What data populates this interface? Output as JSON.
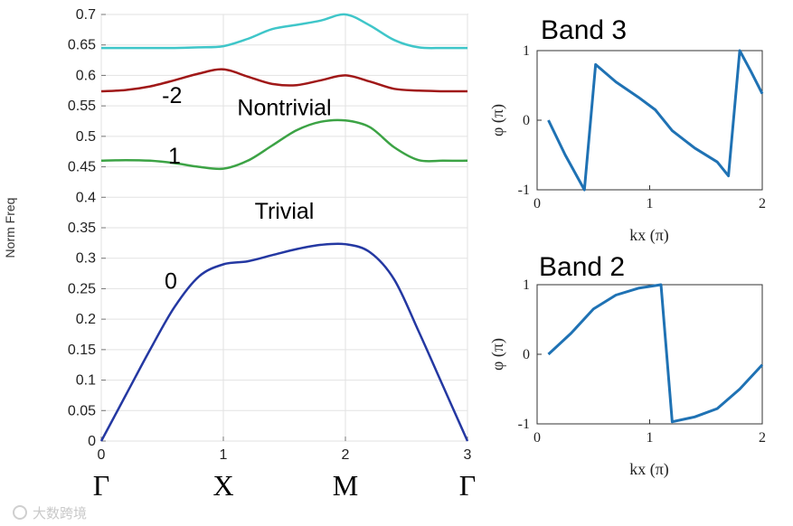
{
  "chart_data": [
    {
      "type": "line",
      "title": "",
      "xlabel": "",
      "ylabel": "Norm Freq",
      "xlim": [
        0,
        3
      ],
      "ylim": [
        0,
        0.7
      ],
      "x_ticks": [
        "0",
        "1",
        "2",
        "3"
      ],
      "y_ticks": [
        "0",
        "0.05",
        "0.1",
        "0.15",
        "0.2",
        "0.25",
        "0.3",
        "0.35",
        "0.4",
        "0.45",
        "0.5",
        "0.55",
        "0.6",
        "0.65",
        "0.7"
      ],
      "symmetry_points": [
        "Γ",
        "X",
        "M",
        "Γ"
      ],
      "annotations": [
        {
          "text": "-2",
          "x": 0.58,
          "y": 0.555
        },
        {
          "text": "Nontrivial",
          "x": 1.5,
          "y": 0.535
        },
        {
          "text": "1",
          "x": 0.6,
          "y": 0.455
        },
        {
          "text": "Trivial",
          "x": 1.5,
          "y": 0.365
        },
        {
          "text": "0",
          "x": 0.57,
          "y": 0.25
        }
      ],
      "series": [
        {
          "name": "band0",
          "color": "#2438a2",
          "x": [
            0,
            0.2,
            0.4,
            0.6,
            0.8,
            1.0,
            1.2,
            1.4,
            1.6,
            1.8,
            2.0,
            2.2,
            2.4,
            2.6,
            2.8,
            3.0
          ],
          "y": [
            0,
            0.075,
            0.15,
            0.22,
            0.27,
            0.29,
            0.295,
            0.305,
            0.315,
            0.322,
            0.323,
            0.31,
            0.265,
            0.18,
            0.09,
            0
          ]
        },
        {
          "name": "band1",
          "color": "#3ca345",
          "x": [
            0,
            0.2,
            0.4,
            0.6,
            0.8,
            1.0,
            1.2,
            1.4,
            1.6,
            1.8,
            2.0,
            2.2,
            2.4,
            2.6,
            2.8,
            3.0
          ],
          "y": [
            0.46,
            0.461,
            0.46,
            0.456,
            0.45,
            0.447,
            0.46,
            0.485,
            0.51,
            0.524,
            0.526,
            0.515,
            0.482,
            0.461,
            0.46,
            0.46
          ]
        },
        {
          "name": "band2",
          "color": "#a01818",
          "x": [
            0,
            0.2,
            0.4,
            0.6,
            0.8,
            1.0,
            1.2,
            1.4,
            1.6,
            1.8,
            2.0,
            2.2,
            2.4,
            2.6,
            2.8,
            3.0
          ],
          "y": [
            0.574,
            0.576,
            0.582,
            0.592,
            0.603,
            0.61,
            0.598,
            0.586,
            0.584,
            0.592,
            0.6,
            0.59,
            0.578,
            0.575,
            0.574,
            0.574
          ]
        },
        {
          "name": "band3",
          "color": "#3fc6c9",
          "x": [
            0,
            0.2,
            0.4,
            0.6,
            0.8,
            1.0,
            1.2,
            1.4,
            1.6,
            1.8,
            2.0,
            2.2,
            2.4,
            2.6,
            2.8,
            3.0
          ],
          "y": [
            0.645,
            0.645,
            0.645,
            0.645,
            0.646,
            0.648,
            0.66,
            0.676,
            0.683,
            0.69,
            0.7,
            0.682,
            0.658,
            0.646,
            0.645,
            0.645
          ]
        }
      ]
    },
    {
      "type": "line",
      "title": "Band 3",
      "xlabel": "kx (π)",
      "ylabel": "φ (π)",
      "xlim": [
        0,
        2
      ],
      "ylim": [
        -1,
        1
      ],
      "x_ticks": [
        "0",
        "1",
        "2"
      ],
      "y_ticks": [
        "-1",
        "0",
        "1"
      ],
      "series": [
        {
          "name": "Band 3",
          "color": "#1f72b4",
          "x": [
            0.1,
            0.25,
            0.42,
            0.52,
            0.7,
            0.9,
            1.05,
            1.2,
            1.4,
            1.6,
            1.7,
            1.8,
            1.9,
            2.0
          ],
          "y": [
            0,
            -0.5,
            -1.0,
            0.8,
            0.55,
            0.33,
            0.15,
            -0.15,
            -0.4,
            -0.6,
            -0.8,
            1.0,
            0.7,
            0.38
          ]
        }
      ]
    },
    {
      "type": "line",
      "title": "Band 2",
      "xlabel": "kx (π)",
      "ylabel": "φ (π)",
      "xlim": [
        0,
        2
      ],
      "ylim": [
        -1,
        1
      ],
      "x_ticks": [
        "0",
        "1",
        "2"
      ],
      "y_ticks": [
        "-1",
        "0",
        "1"
      ],
      "series": [
        {
          "name": "Band 2",
          "color": "#1f72b4",
          "x": [
            0.1,
            0.3,
            0.5,
            0.7,
            0.9,
            1.1,
            1.2,
            1.4,
            1.6,
            1.8,
            2.0
          ],
          "y": [
            0,
            0.3,
            0.65,
            0.85,
            0.95,
            1.0,
            -0.97,
            -0.9,
            -0.78,
            -0.5,
            -0.15
          ]
        }
      ]
    }
  ],
  "watermark": "大数跨境"
}
